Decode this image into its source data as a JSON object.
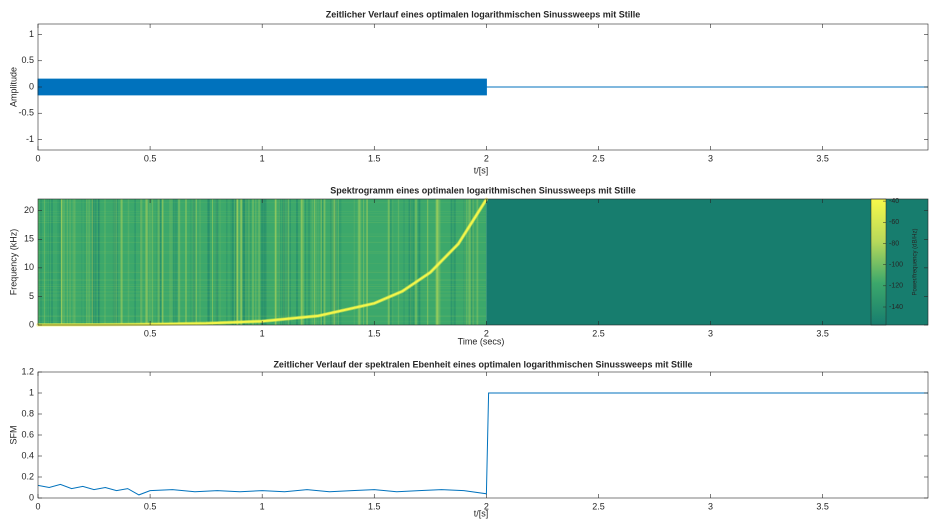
{
  "chart_data": [
    {
      "type": "area",
      "title": "Zeitlicher Verlauf eines optimalen logarithmischen Sinussweeps mit Stille",
      "xlabel": "t/[s]",
      "ylabel": "Amplitude",
      "xlim": [
        0,
        3.97
      ],
      "ylim": [
        -1.2,
        1.2
      ],
      "xticks": [
        0,
        0.5,
        1,
        1.5,
        2,
        2.5,
        3,
        3.5
      ],
      "yticks": [
        -1,
        -0.5,
        0,
        0.5,
        1
      ],
      "series": [
        {
          "color": "#0072bd",
          "x": [
            0,
            2,
            2,
            3.97
          ],
          "values": [
            0.15,
            0.15,
            0,
            0
          ]
        },
        {
          "color": "#0072bd",
          "x": [
            0,
            2,
            2,
            3.97
          ],
          "values": [
            -0.15,
            -0.15,
            0,
            0
          ]
        }
      ]
    },
    {
      "type": "spectrogram",
      "title": "Spektrogramm eines optimalen logarithmischen Sinussweeps mit Stille",
      "xlabel": "Time (secs)",
      "ylabel": "Frequency (kHz)",
      "xlim": [
        0,
        3.97
      ],
      "ylim": [
        0,
        22.05
      ],
      "xticks": [
        0.5,
        1,
        1.5,
        2,
        2.5,
        3,
        3.5
      ],
      "yticks": [
        0,
        5,
        10,
        15,
        20
      ],
      "colormap": [
        "#177d6e",
        "#3ca86b",
        "#b8d95a",
        "#f7f94a"
      ],
      "series": [
        {
          "color": "#f3f64a",
          "x": [
            0,
            0.25,
            0.5,
            0.75,
            1,
            1.25,
            1.5,
            1.625,
            1.75,
            1.875,
            2
          ],
          "values": [
            0.02,
            0.048,
            0.115,
            0.28,
            0.66,
            1.59,
            3.8,
            5.9,
            9.2,
            14.2,
            22
          ]
        }
      ],
      "colorbar": {
        "label": "Power/frequency (dB/Hz)",
        "clim": [
          -157,
          -38
        ],
        "ticks": [
          -40,
          -60,
          -80,
          -100,
          -120,
          -140
        ]
      }
    },
    {
      "type": "line",
      "title": "Zeitlicher Verlauf der spektralen Ebenheit eines optimalen logarithmischen Sinussweeps mit Stille",
      "xlabel": "t/[s]",
      "ylabel": "SFM",
      "xlim": [
        0,
        3.97
      ],
      "ylim": [
        0,
        1.2
      ],
      "xticks": [
        0,
        0.5,
        1,
        1.5,
        2,
        2.5,
        3,
        3.5
      ],
      "yticks": [
        0,
        0.2,
        0.4,
        0.6,
        0.8,
        1,
        1.2
      ],
      "series": [
        {
          "color": "#0072bd",
          "x": [
            0,
            0.05,
            0.1,
            0.15,
            0.2,
            0.25,
            0.3,
            0.35,
            0.4,
            0.45,
            0.5,
            0.6,
            0.7,
            0.8,
            0.9,
            1.0,
            1.1,
            1.2,
            1.3,
            1.4,
            1.5,
            1.6,
            1.7,
            1.8,
            1.9,
            2.0,
            2.01,
            3.97
          ],
          "values": [
            0.12,
            0.1,
            0.13,
            0.09,
            0.11,
            0.08,
            0.1,
            0.07,
            0.09,
            0.03,
            0.07,
            0.08,
            0.06,
            0.07,
            0.06,
            0.07,
            0.06,
            0.08,
            0.06,
            0.07,
            0.08,
            0.06,
            0.07,
            0.08,
            0.07,
            0.04,
            1,
            1
          ]
        }
      ]
    }
  ]
}
